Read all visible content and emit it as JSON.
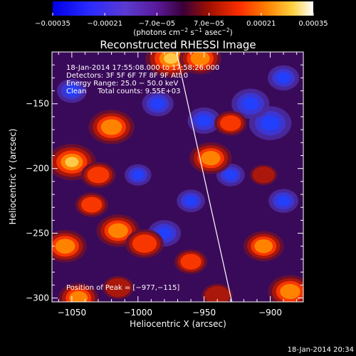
{
  "chart_data": {
    "type": "heatmap",
    "title": "Reconstructed RHESSI Image",
    "xlabel": "Heliocentric X (arcsec)",
    "ylabel": "Heliocentric Y (arcsec)",
    "xlim": [
      -1065,
      -875
    ],
    "ylim": [
      -303,
      -110
    ],
    "x_ticks": [
      -1050,
      -1000,
      -950,
      -900
    ],
    "x_tick_labels": [
      "−1050",
      "−1000",
      "−950",
      "−900"
    ],
    "y_ticks": [
      -150,
      -200,
      -250,
      -300
    ],
    "y_tick_labels": [
      "−150",
      "−200",
      "−250",
      "−300"
    ],
    "colorbar": {
      "range": [
        -0.00035,
        0.00035
      ],
      "ticks": [
        -0.00035,
        -0.00021,
        -7e-05,
        7e-05,
        0.00021,
        0.00035
      ],
      "tick_labels": [
        "−0.00035",
        "−0.00021",
        "−7.0e−05",
        "7.0e−05",
        "0.00021",
        "0.00035"
      ],
      "units_main": "(photons cm",
      "units_sup1": "−2",
      "units_mid1": " s",
      "units_sup2": "−1",
      "units_mid2": " asec",
      "units_sup3": "−2",
      "units_end": ")",
      "colormap": "blue-purple-red-yellow-white"
    },
    "annotations": {
      "time_range": "18-Jan-2014 17:55:08.000 to 17:58:26.000",
      "detectors": "Detectors: 3F 5F 6F 7F 8F 9F Att 0",
      "energy_range": "Energy Range: 25.0 − 50.0 keV",
      "clean_info": "Clean     Total counts: 9.55E+03",
      "peak_position": "Position of Peak = [−977,−115]"
    },
    "limb_line": {
      "x": [
        -971,
        -929
      ],
      "y": [
        -110,
        -303
      ]
    },
    "peak": {
      "x": -977,
      "y": -115
    },
    "hotspots": [
      {
        "x": -1050,
        "y": -195,
        "level": 0.92
      },
      {
        "x": -1055,
        "y": -260,
        "level": 0.78
      },
      {
        "x": -1045,
        "y": -300,
        "level": 0.7
      },
      {
        "x": -1020,
        "y": -168,
        "level": 0.85
      },
      {
        "x": -1030,
        "y": -205,
        "level": 0.55
      },
      {
        "x": -1015,
        "y": -248,
        "level": 0.78
      },
      {
        "x": -995,
        "y": -258,
        "level": 0.65
      },
      {
        "x": -975,
        "y": -115,
        "level": 1.0
      },
      {
        "x": -953,
        "y": -115,
        "level": 0.75
      },
      {
        "x": -945,
        "y": -192,
        "level": 0.75
      },
      {
        "x": -930,
        "y": -165,
        "level": 0.5
      },
      {
        "x": -960,
        "y": -272,
        "level": 0.5
      },
      {
        "x": -905,
        "y": -260,
        "level": 0.7
      },
      {
        "x": -885,
        "y": -295,
        "level": 0.8
      },
      {
        "x": -1015,
        "y": -292,
        "level": 0.45
      },
      {
        "x": -940,
        "y": -298,
        "level": 0.45
      },
      {
        "x": -905,
        "y": -205,
        "level": 0.35
      },
      {
        "x": -1035,
        "y": -228,
        "level": 0.5
      }
    ],
    "coldspots": [
      {
        "x": -900,
        "y": -165,
        "level": 0.9
      },
      {
        "x": -915,
        "y": -150,
        "level": 0.75
      },
      {
        "x": -950,
        "y": -163,
        "level": 0.6
      },
      {
        "x": -980,
        "y": -250,
        "level": 0.6
      },
      {
        "x": -890,
        "y": -225,
        "level": 0.5
      },
      {
        "x": -930,
        "y": -205,
        "level": 0.45
      },
      {
        "x": -1000,
        "y": -205,
        "level": 0.4
      },
      {
        "x": -985,
        "y": -150,
        "level": 0.55
      },
      {
        "x": -1050,
        "y": -140,
        "level": 0.5
      },
      {
        "x": -890,
        "y": -130,
        "level": 0.55
      },
      {
        "x": -960,
        "y": -225,
        "level": 0.45
      }
    ]
  },
  "footer": {
    "timestamp": "18-Jan-2014 20:34"
  }
}
